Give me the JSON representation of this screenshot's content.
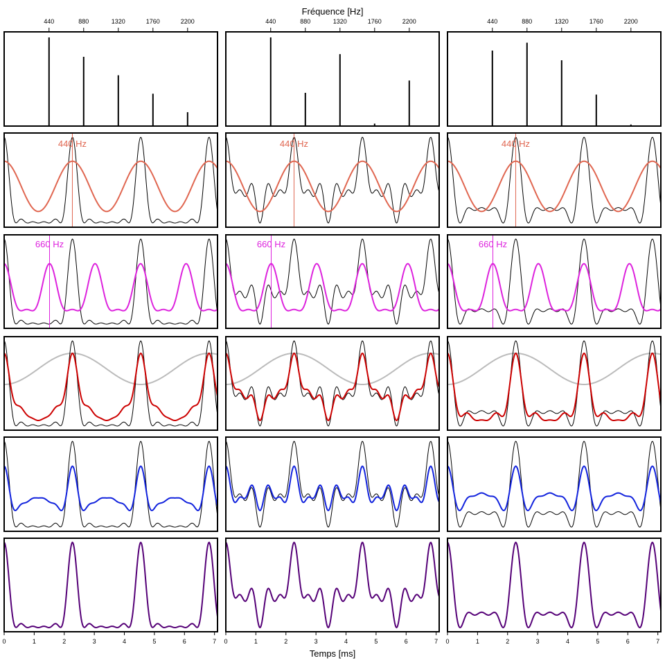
{
  "figure": {
    "top_label": "Fréquence [Hz]",
    "bottom_label": "Temps [ms]"
  },
  "colors": {
    "frame": "#000000",
    "signal": "#000000",
    "h440": "#e06650",
    "h660": "#dd22dd",
    "gray": "#bbbbbb",
    "red": "#cc0000",
    "blue": "#1122dd",
    "purple": "#550077"
  },
  "chart_data": {
    "type": "line",
    "frequency_ticks": [
      440,
      880,
      1320,
      1760,
      2200
    ],
    "time_ticks": [
      0,
      1,
      2,
      3,
      4,
      5,
      6,
      7
    ],
    "time_range_ms": [
      0,
      7.1
    ],
    "frequency_range_hz": [
      -130,
      2580
    ],
    "annotations": [
      {
        "label": "440 Hz",
        "row": 1
      },
      {
        "label": "660 Hz",
        "row": 2
      }
    ],
    "columns": [
      {
        "spectrum": [
          {
            "freq": 440,
            "amp": 1.0
          },
          {
            "freq": 880,
            "amp": 0.78
          },
          {
            "freq": 1320,
            "amp": 0.57
          },
          {
            "freq": 1760,
            "amp": 0.36
          },
          {
            "freq": 2200,
            "amp": 0.15
          }
        ]
      },
      {
        "spectrum": [
          {
            "freq": 440,
            "amp": 1.0
          },
          {
            "freq": 880,
            "amp": 0.37
          },
          {
            "freq": 1320,
            "amp": 0.81
          },
          {
            "freq": 1760,
            "amp": 0.02
          },
          {
            "freq": 2200,
            "amp": 0.51
          }
        ]
      },
      {
        "spectrum": [
          {
            "freq": 440,
            "amp": 0.85
          },
          {
            "freq": 880,
            "amp": 0.94
          },
          {
            "freq": 1320,
            "amp": 0.74
          },
          {
            "freq": 1760,
            "amp": 0.35
          },
          {
            "freq": 2200,
            "amp": 0.01
          }
        ]
      }
    ],
    "rows": [
      {
        "kind": "spectrum"
      },
      {
        "kind": "waveform",
        "overlay": "440 Hz component",
        "marker_ms": 2.27
      },
      {
        "kind": "waveform",
        "overlay": "660 Hz component",
        "marker_ms": 1.51
      },
      {
        "kind": "waveform",
        "overlay": "slow envelope + reconstruction"
      },
      {
        "kind": "waveform",
        "overlay": "residual"
      },
      {
        "kind": "waveform",
        "overlay": "full reconstruction"
      }
    ]
  }
}
